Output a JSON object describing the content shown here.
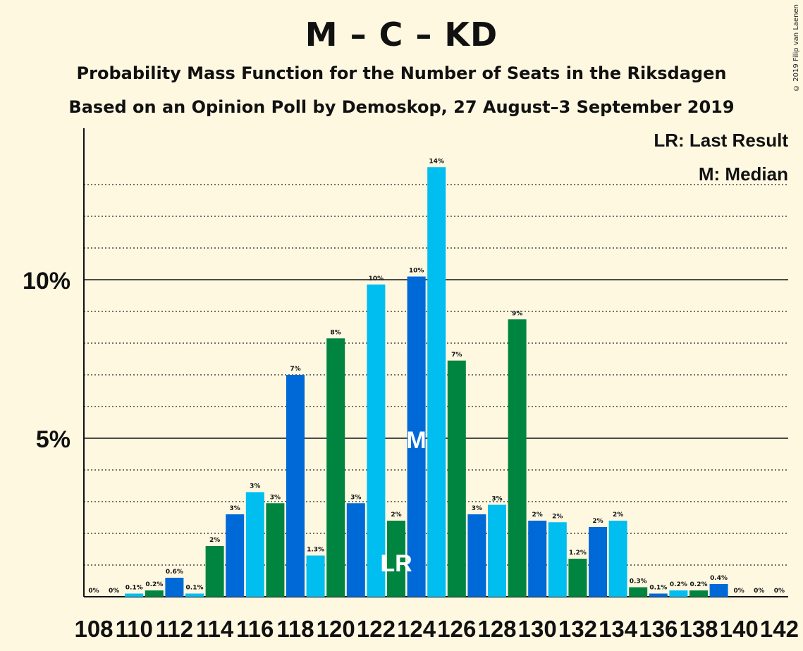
{
  "title": "M – C – KD",
  "subtitle1": "Probability Mass Function for the Number of Seats in the Riksdagen",
  "subtitle2": "Based on an Opinion Poll by Demoskop, 27 August–3 September 2019",
  "copyright": "© 2019 Filip van Laenen",
  "legend": {
    "last_result": "LR: Last Result",
    "median": "M: Median"
  },
  "colors": {
    "dark_blue": "#0069d8",
    "light_blue": "#00bef0",
    "green": "#008540",
    "background": "#fff8e1"
  },
  "chart_data": {
    "type": "bar",
    "categories": [
      108,
      109,
      110,
      111,
      112,
      113,
      114,
      115,
      116,
      117,
      118,
      119,
      120,
      121,
      122,
      123,
      124,
      125,
      126,
      127,
      128,
      129,
      130,
      131,
      132,
      133,
      134,
      135,
      136,
      137,
      138,
      139,
      140,
      141,
      142
    ],
    "values": [
      0,
      0,
      0.1,
      0.2,
      0.6,
      0.1,
      1.6,
      2.6,
      3.3,
      2.95,
      7.0,
      1.3,
      8.15,
      2.95,
      9.85,
      2.4,
      10.1,
      13.55,
      7.45,
      2.6,
      2.9,
      8.75,
      2.4,
      2.35,
      1.2,
      2.2,
      2.4,
      0.3,
      0.1,
      0.2,
      0.2,
      0.4,
      0,
      0,
      0
    ],
    "labels": [
      "0%",
      "0%",
      "0.1%",
      "0.2%",
      "0.6%",
      "0.1%",
      "2%",
      "3%",
      "3%",
      "3%",
      "7%",
      "1.3%",
      "8%",
      "3%",
      "10%",
      "2%",
      "10%",
      "14%",
      "7%",
      "3%",
      "3%",
      "9%",
      "2%",
      "2%",
      "1.2%",
      "2%",
      "2%",
      "0.3%",
      "0.1%",
      "0.2%",
      "0.2%",
      "0.4%",
      "0%",
      "0%",
      "0%"
    ],
    "bar_colors": [
      "light_blue",
      "dark_blue",
      "light_blue",
      "green",
      "dark_blue",
      "light_blue",
      "green",
      "dark_blue",
      "light_blue",
      "green",
      "dark_blue",
      "light_blue",
      "green",
      "dark_blue",
      "light_blue",
      "green",
      "dark_blue",
      "light_blue",
      "green",
      "dark_blue",
      "light_blue",
      "green",
      "dark_blue",
      "light_blue",
      "green",
      "dark_blue",
      "light_blue",
      "green",
      "dark_blue",
      "light_blue",
      "green",
      "dark_blue",
      "light_blue",
      "green",
      "dark_blue"
    ],
    "x_tick_labels": [
      "108",
      "110",
      "112",
      "114",
      "116",
      "118",
      "120",
      "122",
      "124",
      "126",
      "128",
      "130",
      "132",
      "134",
      "136",
      "138",
      "140",
      "142"
    ],
    "y_tick_labels": [
      "5%",
      "10%"
    ],
    "ylim": [
      0,
      14.75
    ],
    "last_result_seat": 123,
    "last_result_marker": "LR",
    "median_seat": 124,
    "median_marker": "M"
  }
}
